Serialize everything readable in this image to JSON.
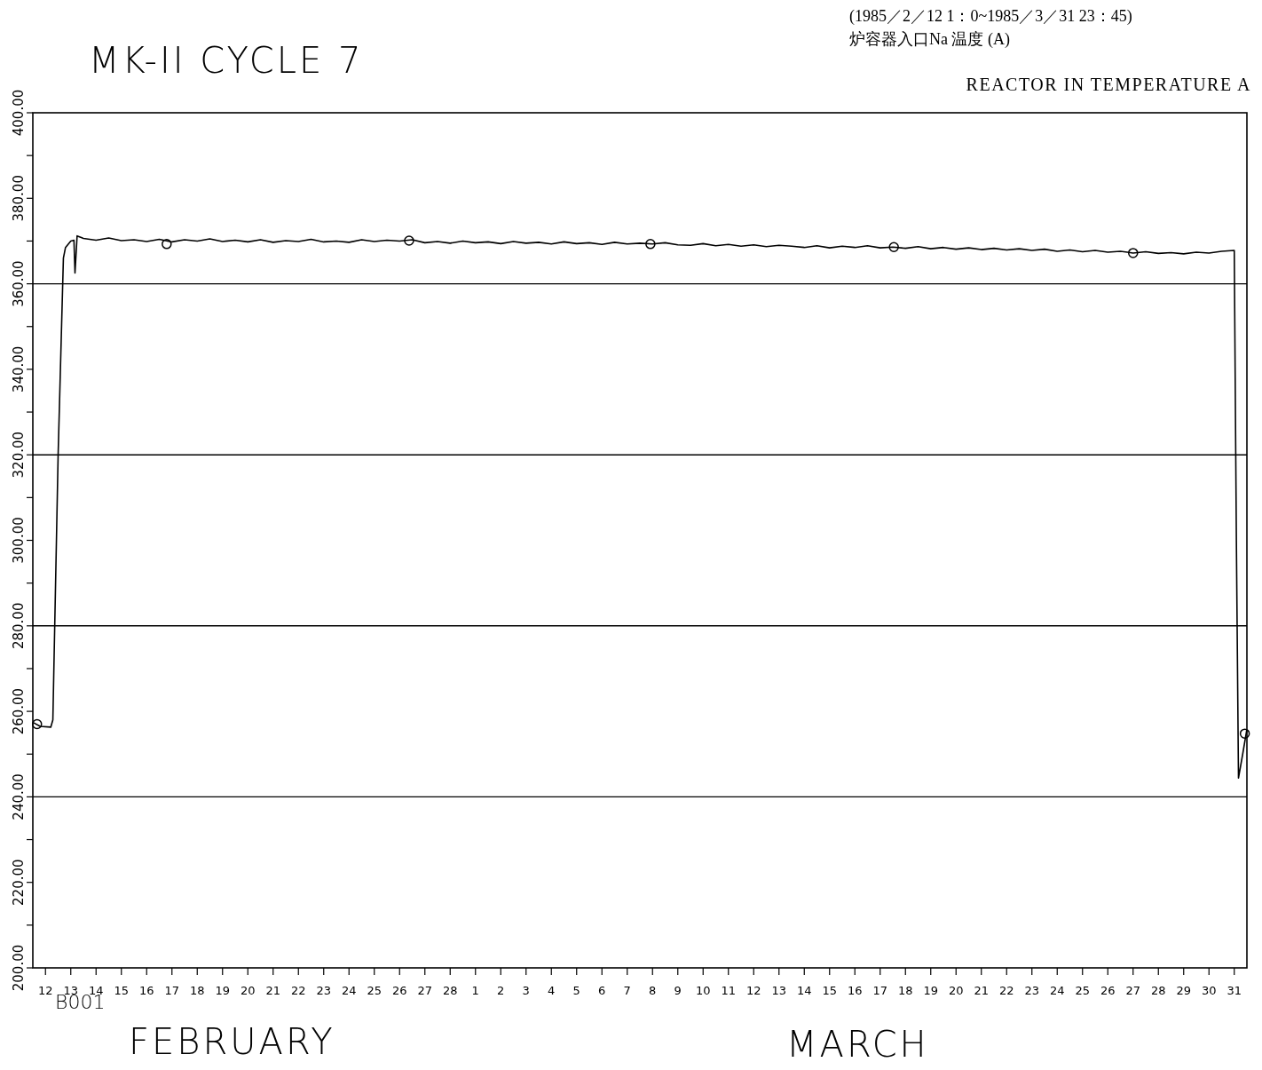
{
  "chart_data": {
    "type": "line",
    "title": "MK-II CYCLE 7",
    "subtitle": "(1985／2／12 1：0~1985／3／31 23：45)",
    "annotations": [
      "炉容器入口Na 温度 (A)",
      "REACTOR IN TEMPERATURE A",
      "B001",
      "FEBRUARY",
      "MARCH"
    ],
    "xlim": [
      "1985-02-12T00:00",
      "1985-04-01T00:00"
    ],
    "ylim": [
      200,
      400
    ],
    "yticks": [
      {
        "value": 200,
        "label": "200.00"
      },
      {
        "value": 210,
        "label": null
      },
      {
        "value": 220,
        "label": "220.00"
      },
      {
        "value": 230,
        "label": null
      },
      {
        "value": 240,
        "label": "240.00"
      },
      {
        "value": 250,
        "label": null
      },
      {
        "value": 260,
        "label": "260.00"
      },
      {
        "value": 270,
        "label": null
      },
      {
        "value": 280,
        "label": "280.00"
      },
      {
        "value": 290,
        "label": null
      },
      {
        "value": 300,
        "label": "300.00"
      },
      {
        "value": 310,
        "label": null
      },
      {
        "value": 320,
        "label": "320.00"
      },
      {
        "value": 330,
        "label": null
      },
      {
        "value": 340,
        "label": "340.00"
      },
      {
        "value": 350,
        "label": null
      },
      {
        "value": 360,
        "label": "360.00"
      },
      {
        "value": 370,
        "label": null
      },
      {
        "value": 380,
        "label": "380.00"
      },
      {
        "value": 390,
        "label": null
      },
      {
        "value": 400,
        "label": "400.00"
      }
    ],
    "xticks": [
      {
        "value": "1985-02-12T12:00",
        "label": "12"
      },
      {
        "value": "1985-02-13T12:00",
        "label": "13"
      },
      {
        "value": "1985-02-14T12:00",
        "label": "14"
      },
      {
        "value": "1985-02-15T12:00",
        "label": "15"
      },
      {
        "value": "1985-02-16T12:00",
        "label": "16"
      },
      {
        "value": "1985-02-17T12:00",
        "label": "17"
      },
      {
        "value": "1985-02-18T12:00",
        "label": "18"
      },
      {
        "value": "1985-02-19T12:00",
        "label": "19"
      },
      {
        "value": "1985-02-20T12:00",
        "label": "20"
      },
      {
        "value": "1985-02-21T12:00",
        "label": "21"
      },
      {
        "value": "1985-02-22T12:00",
        "label": "22"
      },
      {
        "value": "1985-02-23T12:00",
        "label": "23"
      },
      {
        "value": "1985-02-24T12:00",
        "label": "24"
      },
      {
        "value": "1985-02-25T12:00",
        "label": "25"
      },
      {
        "value": "1985-02-26T12:00",
        "label": "26"
      },
      {
        "value": "1985-02-27T12:00",
        "label": "27"
      },
      {
        "value": "1985-02-28T12:00",
        "label": "28"
      },
      {
        "value": "1985-03-01T12:00",
        "label": "1"
      },
      {
        "value": "1985-03-02T12:00",
        "label": "2"
      },
      {
        "value": "1985-03-03T12:00",
        "label": "3"
      },
      {
        "value": "1985-03-04T12:00",
        "label": "4"
      },
      {
        "value": "1985-03-05T12:00",
        "label": "5"
      },
      {
        "value": "1985-03-06T12:00",
        "label": "6"
      },
      {
        "value": "1985-03-07T12:00",
        "label": "7"
      },
      {
        "value": "1985-03-08T12:00",
        "label": "8"
      },
      {
        "value": "1985-03-09T12:00",
        "label": "9"
      },
      {
        "value": "1985-03-10T12:00",
        "label": "10"
      },
      {
        "value": "1985-03-11T12:00",
        "label": "11"
      },
      {
        "value": "1985-03-12T12:00",
        "label": "12"
      },
      {
        "value": "1985-03-13T12:00",
        "label": "13"
      },
      {
        "value": "1985-03-14T12:00",
        "label": "14"
      },
      {
        "value": "1985-03-15T12:00",
        "label": "15"
      },
      {
        "value": "1985-03-16T12:00",
        "label": "16"
      },
      {
        "value": "1985-03-17T12:00",
        "label": "17"
      },
      {
        "value": "1985-03-18T12:00",
        "label": "18"
      },
      {
        "value": "1985-03-19T12:00",
        "label": "19"
      },
      {
        "value": "1985-03-20T12:00",
        "label": "20"
      },
      {
        "value": "1985-03-21T12:00",
        "label": "21"
      },
      {
        "value": "1985-03-22T12:00",
        "label": "22"
      },
      {
        "value": "1985-03-23T12:00",
        "label": "23"
      },
      {
        "value": "1985-03-24T12:00",
        "label": "24"
      },
      {
        "value": "1985-03-25T12:00",
        "label": "25"
      },
      {
        "value": "1985-03-26T12:00",
        "label": "26"
      },
      {
        "value": "1985-03-27T12:00",
        "label": "27"
      },
      {
        "value": "1985-03-28T12:00",
        "label": "28"
      },
      {
        "value": "1985-03-29T12:00",
        "label": "29"
      },
      {
        "value": "1985-03-30T12:00",
        "label": "30"
      },
      {
        "value": "1985-03-31T12:00",
        "label": "31"
      }
    ],
    "ref_lines": [
      {
        "axis": "y",
        "value": 360,
        "color": "#000000"
      },
      {
        "axis": "y",
        "value": 320,
        "color": "#000000"
      },
      {
        "axis": "y",
        "value": 280,
        "color": "#000000"
      },
      {
        "axis": "y",
        "value": 240,
        "color": "#000000"
      }
    ],
    "series": [
      {
        "color": "#000000",
        "x": [
          "1985-02-12T01:00",
          "1985-02-12T07:00",
          "1985-02-12T17:00",
          "1985-02-12T19:00",
          "1985-02-13T00:00",
          "1985-02-13T05:00",
          "1985-02-13T07:00",
          "1985-02-13T12:00",
          "1985-02-13T15:00",
          "1985-02-13T16:00",
          "1985-02-13T18:00",
          "1985-02-13T22:00",
          "1985-02-14T00:00",
          "1985-02-14T12:00",
          "1985-02-15T00:00",
          "1985-02-15T12:00",
          "1985-02-16T00:00",
          "1985-02-16T12:00",
          "1985-02-17T00:00",
          "1985-02-17T12:00",
          "1985-02-18T00:00",
          "1985-02-18T12:00",
          "1985-02-19T00:00",
          "1985-02-19T12:00",
          "1985-02-20T00:00",
          "1985-02-20T12:00",
          "1985-02-21T00:00",
          "1985-02-21T12:00",
          "1985-02-22T00:00",
          "1985-02-22T12:00",
          "1985-02-23T00:00",
          "1985-02-23T12:00",
          "1985-02-24T00:00",
          "1985-02-24T12:00",
          "1985-02-25T00:00",
          "1985-02-25T12:00",
          "1985-02-26T00:00",
          "1985-02-26T12:00",
          "1985-02-27T00:00",
          "1985-02-27T12:00",
          "1985-02-28T00:00",
          "1985-02-28T12:00",
          "1985-03-01T00:00",
          "1985-03-01T12:00",
          "1985-03-02T00:00",
          "1985-03-02T12:00",
          "1985-03-03T00:00",
          "1985-03-03T12:00",
          "1985-03-04T00:00",
          "1985-03-04T12:00",
          "1985-03-05T00:00",
          "1985-03-05T12:00",
          "1985-03-06T00:00",
          "1985-03-06T12:00",
          "1985-03-07T00:00",
          "1985-03-07T12:00",
          "1985-03-08T00:00",
          "1985-03-08T12:00",
          "1985-03-09T00:00",
          "1985-03-09T12:00",
          "1985-03-10T00:00",
          "1985-03-10T12:00",
          "1985-03-11T00:00",
          "1985-03-11T12:00",
          "1985-03-12T00:00",
          "1985-03-12T12:00",
          "1985-03-13T00:00",
          "1985-03-13T12:00",
          "1985-03-14T00:00",
          "1985-03-14T12:00",
          "1985-03-15T00:00",
          "1985-03-15T12:00",
          "1985-03-16T00:00",
          "1985-03-16T12:00",
          "1985-03-17T00:00",
          "1985-03-17T12:00",
          "1985-03-18T00:00",
          "1985-03-18T12:00",
          "1985-03-19T00:00",
          "1985-03-19T12:00",
          "1985-03-20T00:00",
          "1985-03-20T12:00",
          "1985-03-21T00:00",
          "1985-03-21T12:00",
          "1985-03-22T00:00",
          "1985-03-22T12:00",
          "1985-03-23T00:00",
          "1985-03-23T12:00",
          "1985-03-24T00:00",
          "1985-03-24T12:00",
          "1985-03-25T00:00",
          "1985-03-25T12:00",
          "1985-03-26T00:00",
          "1985-03-26T12:00",
          "1985-03-27T00:00",
          "1985-03-27T12:00",
          "1985-03-28T00:00",
          "1985-03-28T12:00",
          "1985-03-29T00:00",
          "1985-03-29T12:00",
          "1985-03-30T00:00",
          "1985-03-30T12:00",
          "1985-03-31T00:00",
          "1985-03-31T12:00",
          "1985-03-31T14:00",
          "1985-03-31T16:00",
          "1985-03-31T20:00",
          "1985-03-31T23:45"
        ],
        "values": [
          257.3,
          256.5,
          256.3,
          258.0,
          320.0,
          366.0,
          368.5,
          370.0,
          370.2,
          362.5,
          371.2,
          370.8,
          370.6,
          370.2,
          370.7,
          370.1,
          370.3,
          369.9,
          370.4,
          369.8,
          370.3,
          370.0,
          370.5,
          369.9,
          370.2,
          369.8,
          370.3,
          369.7,
          370.1,
          369.9,
          370.4,
          369.8,
          370.0,
          369.7,
          370.3,
          369.9,
          370.2,
          370.0,
          370.3,
          369.6,
          369.9,
          369.5,
          370.0,
          369.6,
          369.8,
          369.4,
          369.9,
          369.5,
          369.7,
          369.3,
          369.8,
          369.4,
          369.6,
          369.2,
          369.7,
          369.3,
          369.5,
          369.3,
          369.6,
          369.1,
          369.0,
          369.4,
          368.9,
          369.2,
          368.8,
          369.1,
          368.7,
          369.0,
          368.8,
          368.5,
          368.9,
          368.4,
          368.8,
          368.5,
          368.9,
          368.4,
          368.6,
          368.3,
          368.7,
          368.2,
          368.5,
          368.1,
          368.4,
          368.0,
          368.3,
          367.9,
          368.2,
          367.8,
          368.1,
          367.6,
          367.9,
          367.5,
          367.8,
          367.4,
          367.6,
          367.2,
          367.5,
          367.1,
          367.3,
          367.0,
          367.4,
          367.2,
          367.6,
          367.8,
          300.0,
          244.4,
          250.0,
          255.5
        ]
      },
      {
        "type": "scatter",
        "marker": "circle",
        "color": "#000000",
        "x": [
          "1985-02-12T04:00",
          "1985-02-17T07:00",
          "1985-02-26T21:00",
          "1985-03-08T10:00",
          "1985-03-18T01:00",
          "1985-03-27T12:00",
          "1985-03-31T22:00"
        ],
        "values": [
          257.0,
          369.3,
          370.1,
          369.3,
          368.6,
          367.2,
          254.8
        ]
      }
    ]
  }
}
